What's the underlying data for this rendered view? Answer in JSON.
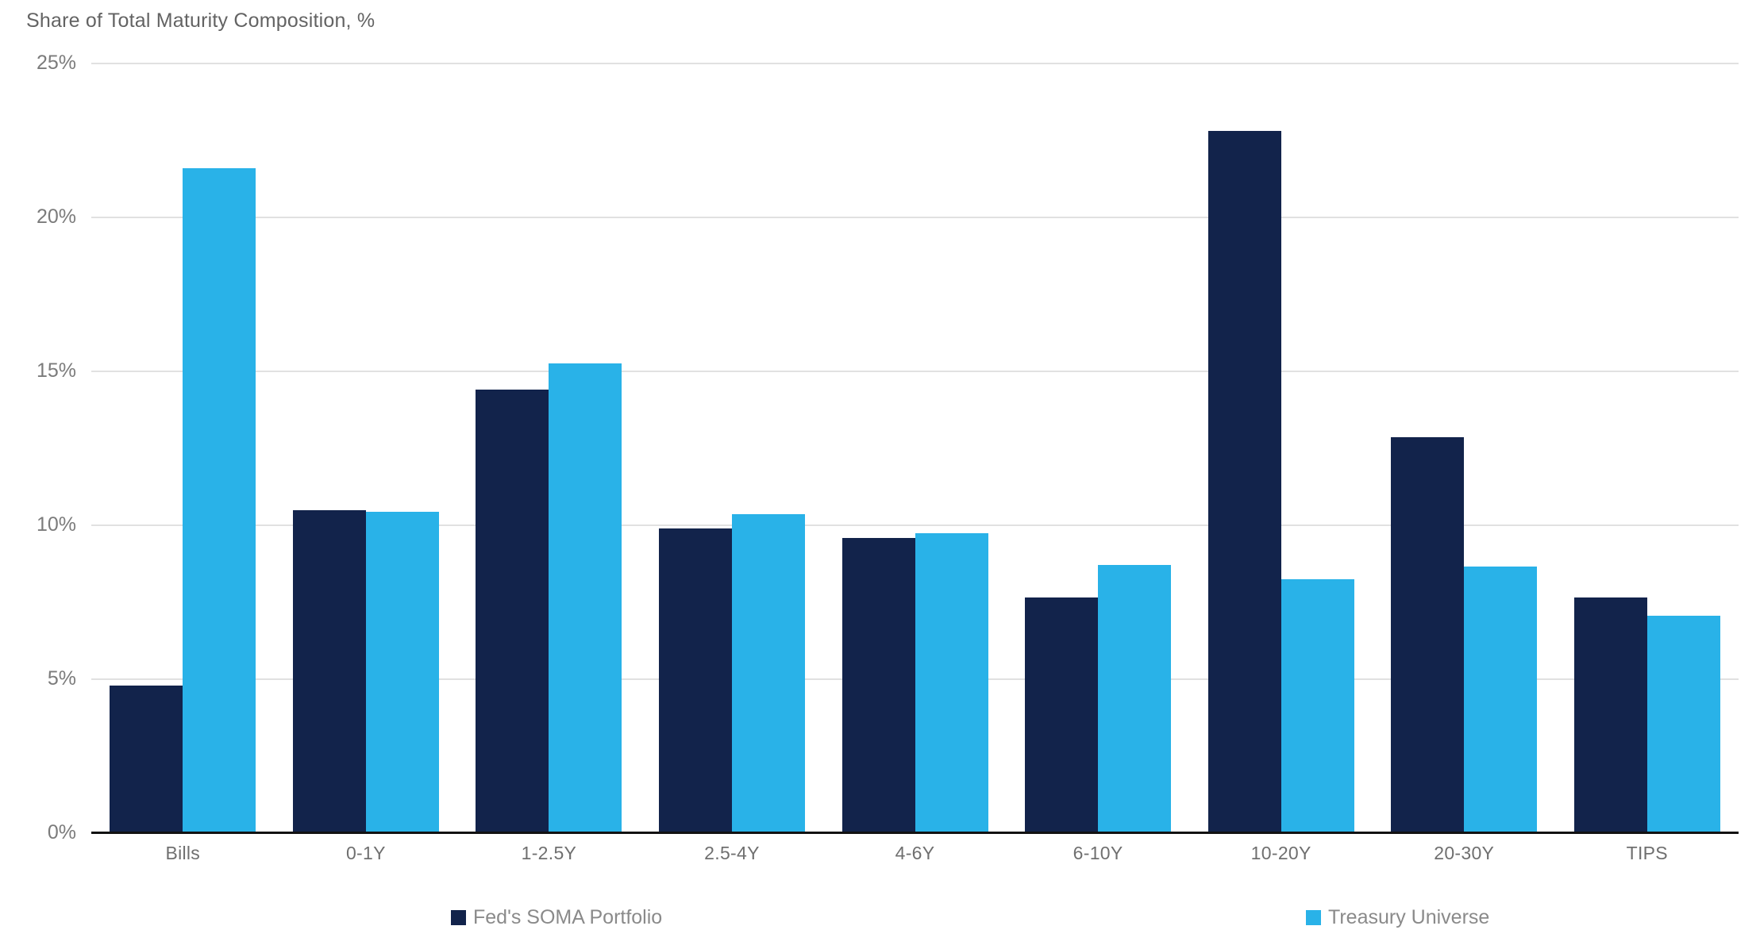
{
  "title": "Share of Total Maturity Composition, %",
  "colors": {
    "soma_navy": "#12234B",
    "treasury_blue": "#29B2E8",
    "gridline_grey": "#E1E1E1",
    "axis_black": "#121212",
    "label_grey": "#7B7B7B"
  },
  "chart_data": {
    "type": "bar",
    "title": "Share of Total Maturity Composition, %",
    "categories": [
      "Bills",
      "0-1Y",
      "1-2.5Y",
      "2.5-4Y",
      "4-6Y",
      "6-10Y",
      "10-20Y",
      "20-30Y",
      "TIPS"
    ],
    "series": [
      {
        "name": "Fed's SOMA Portfolio",
        "color": "#12234B",
        "values": [
          4.8,
          10.5,
          14.4,
          9.9,
          9.6,
          7.65,
          22.8,
          12.85,
          7.65
        ]
      },
      {
        "name": "Treasury Universe",
        "color": "#29B2E8",
        "values": [
          21.6,
          10.45,
          15.25,
          10.35,
          9.75,
          8.7,
          8.25,
          8.65,
          7.05
        ]
      }
    ],
    "xlabel": "",
    "ylabel": "Share of Total Maturity Composition, %",
    "ylim": [
      0,
      25
    ],
    "yticks": [
      0,
      5,
      10,
      15,
      20,
      25
    ],
    "ytick_labels": [
      "0%",
      "5%",
      "10%",
      "15%",
      "20%",
      "25%"
    ],
    "grid": true,
    "legend_position": "bottom"
  },
  "legend": {
    "items": [
      {
        "label": "Fed's SOMA Portfolio",
        "color": "#12234B"
      },
      {
        "label": "Treasury Universe",
        "color": "#29B2E8"
      }
    ]
  }
}
